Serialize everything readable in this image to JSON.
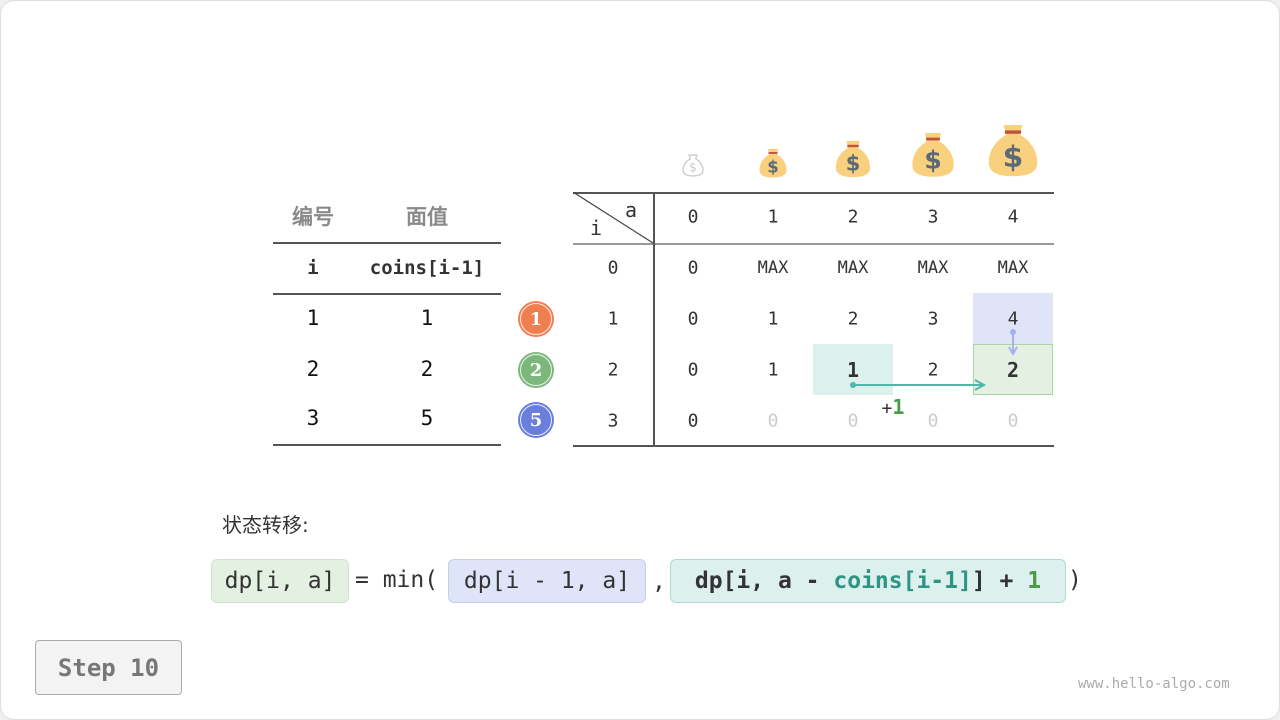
{
  "coins_table": {
    "headers_cn": [
      "编号",
      "面值"
    ],
    "headers_code": [
      "i",
      "coins[i-1]"
    ],
    "rows": [
      [
        "1",
        "1"
      ],
      [
        "2",
        "2"
      ],
      [
        "3",
        "5"
      ]
    ]
  },
  "coin_badges": [
    {
      "label": "1",
      "color": "#f07f50"
    },
    {
      "label": "2",
      "color": "#7cb87c"
    },
    {
      "label": "5",
      "color": "#6a7fdc"
    }
  ],
  "dp_table": {
    "corner_row_label": "i",
    "corner_col_label": "a",
    "col_headers": [
      "0",
      "1",
      "2",
      "3",
      "4"
    ],
    "row_headers": [
      "0",
      "1",
      "2",
      "3"
    ],
    "cells": [
      [
        "0",
        "MAX",
        "MAX",
        "MAX",
        "MAX"
      ],
      [
        "0",
        "1",
        "2",
        "3",
        "4"
      ],
      [
        "0",
        "1",
        "1",
        "2",
        "2"
      ],
      [
        "0",
        "0",
        "0",
        "0",
        "0"
      ]
    ],
    "plus_label": "+",
    "plus_value": "1",
    "icons": [
      "money-bag-icon"
    ]
  },
  "colors": {
    "blue_highlight": "#e0e4f8",
    "teal_highlight": "#dcf0ee",
    "green_highlight": "#e3f0e2",
    "teal_text": "#2e9484",
    "green_text": "#4a9a4a"
  },
  "transition": {
    "label": "状态转移:",
    "lhs": "dp[i, a]",
    "eq_min": "= min(",
    "arg1": "dp[i - 1, a]",
    "comma": ",",
    "arg2_prefix": "dp[i, a - ",
    "arg2_coins": "coins[i-1]",
    "arg2_mid": "] + ",
    "arg2_one": "1",
    "close": ")"
  },
  "step_button": "Step 10",
  "watermark": "www.hello-algo.com"
}
